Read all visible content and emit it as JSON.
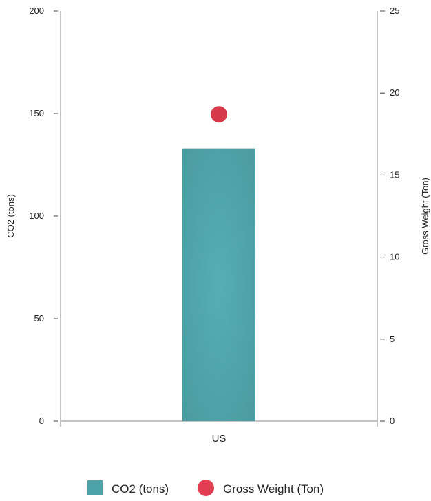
{
  "chart_data": {
    "type": "bar",
    "categories": [
      "US"
    ],
    "series": [
      {
        "name": "CO2 (tons)",
        "kind": "bar",
        "axis": "left",
        "values": [
          133
        ],
        "color": "#4ea3a8"
      },
      {
        "name": "Gross Weight (Ton)",
        "kind": "scatter",
        "axis": "right",
        "values": [
          18.7
        ],
        "color": "#d63a4a"
      }
    ],
    "left_axis": {
      "label": "CO2 (tons)",
      "range": [
        0,
        200
      ],
      "ticks": [
        0,
        50,
        100,
        150,
        200
      ],
      "tick_labels": [
        "0",
        "50",
        "100",
        "150",
        "200"
      ]
    },
    "right_axis": {
      "label": "Gross Weight (Ton)",
      "range": [
        0,
        25
      ],
      "ticks": [
        0,
        5,
        10,
        15,
        20,
        25
      ],
      "tick_labels": [
        "0",
        "5",
        "10",
        "15",
        "20",
        "25"
      ]
    },
    "grid": false,
    "legend_position": "bottom-center"
  }
}
